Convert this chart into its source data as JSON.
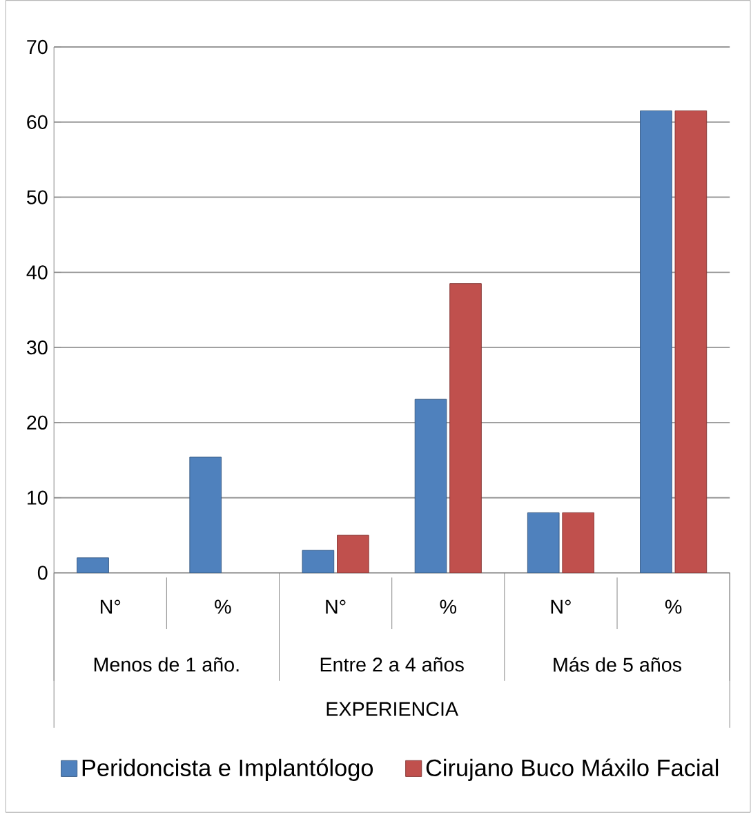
{
  "chart_data": {
    "type": "bar",
    "categories": [
      "N°",
      "%",
      "N°",
      "%",
      "N°",
      "%"
    ],
    "series": [
      {
        "name": "Peridoncista e Implantólogo",
        "color": "#4f81bd",
        "values": [
          2,
          15.4,
          3,
          23.1,
          8,
          61.5
        ]
      },
      {
        "name": "Cirujano Buco Máxilo Facial",
        "color": "#c0504d",
        "values": [
          null,
          null,
          5,
          38.5,
          8,
          61.5
        ]
      }
    ],
    "xlabel": "EXPERIENCIA",
    "annotations": [
      "Menos de 1 año.",
      "Entre 2 a 4 años",
      "Más de  5 años"
    ],
    "ylim": [
      0,
      70
    ],
    "yticks": [
      0,
      10,
      20,
      30,
      40,
      50,
      60,
      70
    ],
    "grid": "y",
    "legend": "bottom"
  }
}
